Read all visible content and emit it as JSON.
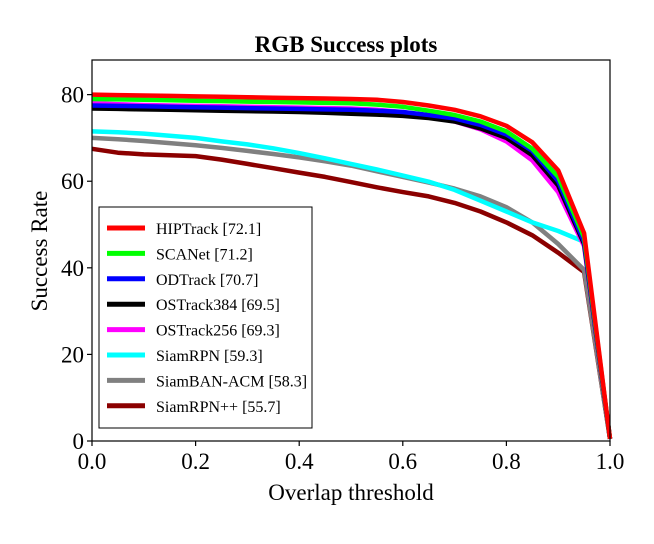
{
  "chart_data": {
    "type": "line",
    "title": "RGB Success plots",
    "xlabel": "Overlap threshold",
    "ylabel": "Success Rate",
    "xlim": [
      0,
      1
    ],
    "ylim": [
      0,
      88
    ],
    "xticks": [
      "0.0",
      "0.2",
      "0.4",
      "0.6",
      "0.8",
      "1.0"
    ],
    "yticks": [
      "0",
      "20",
      "40",
      "60",
      "80"
    ],
    "grid": false,
    "legend_position": "center-left",
    "x": [
      0.0,
      0.05,
      0.1,
      0.15,
      0.2,
      0.25,
      0.3,
      0.35,
      0.4,
      0.45,
      0.5,
      0.55,
      0.6,
      0.65,
      0.7,
      0.75,
      0.8,
      0.85,
      0.9,
      0.95,
      1.0
    ],
    "series": [
      {
        "name": "HIPTrack [72.1]",
        "color": "#ff0000",
        "values": [
          80.0,
          79.9,
          79.8,
          79.7,
          79.6,
          79.5,
          79.4,
          79.3,
          79.2,
          79.1,
          79.0,
          78.8,
          78.3,
          77.5,
          76.5,
          75.0,
          72.8,
          69.0,
          62.5,
          48.0,
          0.5
        ]
      },
      {
        "name": "SCANet [71.2]",
        "color": "#00ff00",
        "values": [
          79.0,
          78.9,
          78.8,
          78.7,
          78.6,
          78.5,
          78.4,
          78.3,
          78.2,
          78.1,
          78.0,
          77.7,
          77.2,
          76.3,
          75.3,
          73.8,
          71.5,
          67.5,
          61.0,
          47.0,
          0.5
        ]
      },
      {
        "name": "ODTrack [70.7]",
        "color": "#0000ff",
        "values": [
          77.5,
          77.4,
          77.3,
          77.2,
          77.1,
          77.0,
          76.9,
          76.8,
          76.7,
          76.6,
          76.5,
          76.3,
          76.0,
          75.3,
          74.5,
          73.0,
          70.8,
          67.0,
          60.0,
          46.0,
          0.5
        ]
      },
      {
        "name": "OSTrack384 [69.5]",
        "color": "#000000",
        "values": [
          76.8,
          76.7,
          76.6,
          76.5,
          76.4,
          76.3,
          76.2,
          76.1,
          76.0,
          75.8,
          75.6,
          75.4,
          75.1,
          74.6,
          73.8,
          72.2,
          70.0,
          66.0,
          59.0,
          45.5,
          0.5
        ]
      },
      {
        "name": "OSTrack256 [69.3]",
        "color": "#ff00ff",
        "values": [
          78.0,
          77.8,
          77.6,
          77.5,
          77.4,
          77.3,
          77.2,
          77.1,
          77.0,
          76.9,
          76.8,
          76.5,
          76.0,
          75.0,
          73.8,
          72.0,
          69.2,
          64.8,
          57.5,
          45.0,
          0.5
        ]
      },
      {
        "name": "SiamRPN [59.3]",
        "color": "#00ffff",
        "values": [
          71.5,
          71.3,
          71.0,
          70.5,
          70.0,
          69.2,
          68.5,
          67.6,
          66.5,
          65.3,
          64.0,
          62.7,
          61.3,
          59.9,
          58.0,
          55.5,
          53.0,
          50.5,
          48.5,
          46.0,
          0.5
        ]
      },
      {
        "name": "SiamBAN-ACM [58.3]",
        "color": "#808080",
        "values": [
          70.0,
          69.7,
          69.3,
          68.8,
          68.3,
          67.7,
          67.0,
          66.3,
          65.5,
          64.6,
          63.6,
          62.3,
          61.0,
          59.7,
          58.3,
          56.5,
          54.0,
          50.5,
          45.5,
          39.5,
          0.5
        ]
      },
      {
        "name": "SiamRPN++ [55.7]",
        "color": "#8b0000",
        "values": [
          67.5,
          66.6,
          66.2,
          66.0,
          65.8,
          65.0,
          64.0,
          63.0,
          62.0,
          61.0,
          59.8,
          58.6,
          57.5,
          56.5,
          55.0,
          53.0,
          50.5,
          47.5,
          43.5,
          39.0,
          0.5
        ]
      }
    ]
  }
}
